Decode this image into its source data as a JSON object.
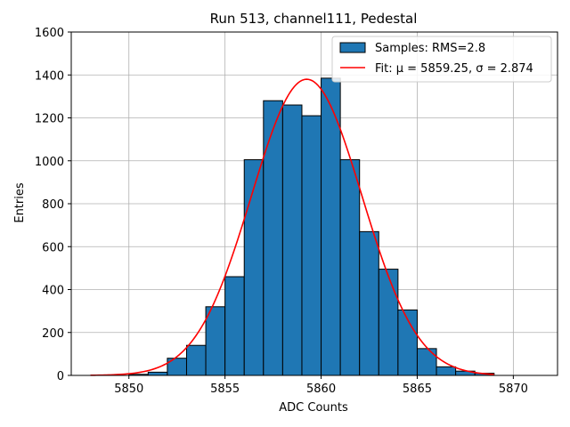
{
  "chart_data": {
    "type": "bar",
    "title": "Run 513, channel111, Pedestal",
    "xlabel": "ADC Counts",
    "ylabel": "Entries",
    "xlim": [
      5847,
      5872.3
    ],
    "ylim": [
      0,
      1600
    ],
    "xticks": [
      5850,
      5855,
      5860,
      5865,
      5870
    ],
    "yticks": [
      0,
      200,
      400,
      600,
      800,
      1000,
      1200,
      1400,
      1600
    ],
    "grid": true,
    "legend_position": "top-right",
    "bar_color": "#1f77b4",
    "bin_width": 1,
    "series": [
      {
        "name": "Samples: RMS=2.8",
        "kind": "histogram",
        "bins": [
          {
            "left": 5850,
            "value": 5
          },
          {
            "left": 5851,
            "value": 15
          },
          {
            "left": 5852,
            "value": 80
          },
          {
            "left": 5853,
            "value": 140
          },
          {
            "left": 5854,
            "value": 320
          },
          {
            "left": 5855,
            "value": 460
          },
          {
            "left": 5856,
            "value": 1005
          },
          {
            "left": 5857,
            "value": 1280
          },
          {
            "left": 5858,
            "value": 1260
          },
          {
            "left": 5859,
            "value": 1210
          },
          {
            "left": 5860,
            "value": 1385
          },
          {
            "left": 5861,
            "value": 1005
          },
          {
            "left": 5862,
            "value": 670
          },
          {
            "left": 5863,
            "value": 495
          },
          {
            "left": 5864,
            "value": 305
          },
          {
            "left": 5865,
            "value": 125
          },
          {
            "left": 5866,
            "value": 40
          },
          {
            "left": 5867,
            "value": 20
          },
          {
            "left": 5868,
            "value": 10
          }
        ]
      },
      {
        "name": "Fit: μ = 5859.25, σ = 2.874",
        "kind": "gaussian_fit",
        "color": "#ff0000",
        "mu": 5859.25,
        "sigma": 2.874,
        "amplitude": 1380,
        "x_range": [
          5848,
          5869
        ]
      }
    ]
  }
}
